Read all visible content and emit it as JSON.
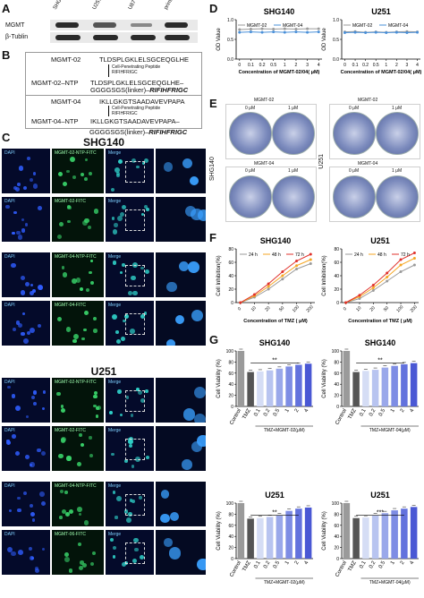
{
  "panels": {
    "a": "A",
    "b": "B",
    "c": "C",
    "d": "D",
    "e": "E",
    "f": "F",
    "g": "G"
  },
  "blot": {
    "lanes": [
      "SHG140",
      "U251",
      "U87",
      "primary"
    ],
    "rows": [
      "MGMT",
      "β-Tublin"
    ]
  },
  "panel_b": {
    "seq1_name": "MGMT-02",
    "seq1": "TLDSPLGKLELSGCEQGLHE",
    "seq1_ntp_name": "MGMT-02–NTP",
    "seq1_ntp": "TLDSPLGKLELSGCEQGLHE–",
    "arrow_label": "Cell-Penetrating Peptide",
    "arrow_seq": "RIFIHFRIGC",
    "linker": "GGGGSGS(linker)–",
    "cpp": "RIFIHFRIGC",
    "seq2_name": "MGMT-04",
    "seq2": "IKLLGKGTSAADAVEVPAPA",
    "seq2_ntp_name": "MGMT-04–NTP",
    "seq2_ntp": "IKLLGKGTSAADAVEVPAPA–"
  },
  "panel_c": {
    "shg_title": "SHG140",
    "u_title": "U251",
    "rows": [
      {
        "dapi": "DAPI",
        "fitc": "MGMT-02-NTP-FITC",
        "merge": "Merge"
      },
      {
        "dapi": "DAPI",
        "fitc": "MGMT-02-FITC",
        "merge": "Merge"
      },
      {
        "dapi": "DAPI",
        "fitc": "MGMT-04-NTP-FITC",
        "merge": "Merge"
      },
      {
        "dapi": "DAPI",
        "fitc": "MGMT-04-FITC",
        "merge": "Merge"
      },
      {
        "dapi": "DAPI",
        "fitc": "MGMT-02-NTP-FITC",
        "merge": "Merge"
      },
      {
        "dapi": "DAPI",
        "fitc": "MGMT-02-FITC",
        "merge": "Merge"
      },
      {
        "dapi": "DAPI",
        "fitc": "MGMT-04-NTP-FITC",
        "merge": "Merge"
      },
      {
        "dapi": "DAPI",
        "fitc": "MGMT-06-FITC",
        "merge": "Merge"
      }
    ],
    "scale": "50 μm"
  },
  "panel_e": {
    "left_side": "SHG140",
    "right_side": "U251",
    "top_group": "MGMT-02",
    "bottom_group": "MGMT-04",
    "doses": [
      "0 μM",
      "1 μM"
    ]
  },
  "chart_data": [
    {
      "id": "D-SHG140",
      "type": "line",
      "title": "SHG140",
      "xlabel": "Concentration of MGMT-02/04( μM)",
      "ylabel": "OD Value",
      "categories": [
        "0",
        "0.1",
        "0.2",
        "0.5",
        "1",
        "2",
        "3",
        "4"
      ],
      "ylim": [
        0,
        1.0
      ],
      "yticks": [
        "0.0",
        "0.5",
        "1.0"
      ],
      "series": [
        {
          "name": "MGMT-02",
          "color": "#9a9a9a",
          "values": [
            0.75,
            0.76,
            0.77,
            0.76,
            0.77,
            0.76,
            0.77,
            0.77
          ]
        },
        {
          "name": "MGMT-04",
          "color": "#4a90d9",
          "values": [
            0.68,
            0.69,
            0.68,
            0.69,
            0.68,
            0.69,
            0.68,
            0.69
          ]
        }
      ]
    },
    {
      "id": "D-U251",
      "type": "line",
      "title": "U251",
      "xlabel": "Concentration of MGMT-02/04( μM)",
      "ylabel": "OD Value",
      "categories": [
        "0",
        "0.1",
        "0.2",
        "0.5",
        "1",
        "2",
        "3",
        "4"
      ],
      "ylim": [
        0,
        1.0
      ],
      "yticks": [
        "0.0",
        "0.5",
        "1.0"
      ],
      "series": [
        {
          "name": "MGMT-02",
          "color": "#9a9a9a",
          "values": [
            0.69,
            0.7,
            0.68,
            0.69,
            0.68,
            0.69,
            0.7,
            0.69
          ]
        },
        {
          "name": "MGMT-04",
          "color": "#4a90d9",
          "values": [
            0.67,
            0.68,
            0.67,
            0.68,
            0.67,
            0.68,
            0.67,
            0.68
          ]
        }
      ]
    },
    {
      "id": "F-SHG140",
      "type": "line",
      "title": "SHG140",
      "xlabel": "Concentration of TMZ ( μM)",
      "ylabel": "Cell Inhibition(%)",
      "categories": [
        "0",
        "10",
        "20",
        "50",
        "100",
        "200"
      ],
      "ylim": [
        0,
        80
      ],
      "yticks": [
        "0",
        "20",
        "40",
        "60",
        "80"
      ],
      "series": [
        {
          "name": "24 h",
          "color": "#9a9a9a",
          "values": [
            0,
            8,
            20,
            35,
            50,
            58
          ]
        },
        {
          "name": "48 h",
          "color": "#f5a623",
          "values": [
            0,
            10,
            24,
            40,
            55,
            64
          ]
        },
        {
          "name": "72 h",
          "color": "#e0312b",
          "values": [
            0,
            12,
            28,
            46,
            62,
            72
          ]
        }
      ]
    },
    {
      "id": "F-U251",
      "type": "line",
      "title": "U251",
      "xlabel": "Concentration of TMZ ( μM)",
      "ylabel": "Cell Inhibition(%)",
      "categories": [
        "0",
        "10",
        "20",
        "50",
        "100",
        "200"
      ],
      "ylim": [
        0,
        80
      ],
      "yticks": [
        "0",
        "20",
        "40",
        "60",
        "80"
      ],
      "series": [
        {
          "name": "24 h",
          "color": "#9a9a9a",
          "values": [
            0,
            6,
            18,
            32,
            46,
            56
          ]
        },
        {
          "name": "48 h",
          "color": "#f5a623",
          "values": [
            0,
            9,
            22,
            38,
            56,
            66
          ]
        },
        {
          "name": "72 h",
          "color": "#e0312b",
          "values": [
            0,
            11,
            26,
            44,
            64,
            74
          ]
        }
      ]
    },
    {
      "id": "G-SHG140-02",
      "type": "bar",
      "title": "SHG140",
      "ylabel": "Cell Viability (%)",
      "xlabel": "TMZ+MGMT-02(μM)",
      "categories": [
        "Control",
        "TMZ",
        "0.1",
        "0.2",
        "0.5",
        "1",
        "2",
        "4"
      ],
      "values": [
        100,
        62,
        63,
        65,
        68,
        72,
        75,
        77
      ],
      "colors": [
        "#9a9a9a",
        "#555555",
        "#d5ddf5",
        "#b8c4f0",
        "#9aa8ea",
        "#7e8de4",
        "#6372dd",
        "#4a58d4"
      ],
      "ylim": [
        0,
        100
      ],
      "yticks": [
        "0",
        "20",
        "40",
        "60",
        "80",
        "100"
      ],
      "annotation": "**"
    },
    {
      "id": "G-SHG140-04",
      "type": "bar",
      "title": "SHG140",
      "ylabel": "Cell Viability (%)",
      "xlabel": "TMZ+MGMT-04(μM)",
      "categories": [
        "Control",
        "TMZ",
        "0.1",
        "0.2",
        "0.5",
        "1",
        "2",
        "4"
      ],
      "values": [
        100,
        62,
        64,
        66,
        70,
        73,
        76,
        78
      ],
      "colors": [
        "#9a9a9a",
        "#555555",
        "#d5ddf5",
        "#b8c4f0",
        "#9aa8ea",
        "#7e8de4",
        "#6372dd",
        "#4a58d4"
      ],
      "ylim": [
        0,
        100
      ],
      "yticks": [
        "0",
        "20",
        "40",
        "60",
        "80",
        "100"
      ],
      "annotation": "**"
    },
    {
      "id": "G-U251-02",
      "type": "bar",
      "title": "U251",
      "ylabel": "Cell Viability (%)",
      "xlabel": "TMZ+MGMT-02(μM)",
      "categories": [
        "Control",
        "TMZ",
        "0.1",
        "0.2",
        "0.5",
        "1",
        "2",
        "4"
      ],
      "values": [
        100,
        72,
        73,
        75,
        78,
        86,
        90,
        92
      ],
      "colors": [
        "#9a9a9a",
        "#555555",
        "#d5ddf5",
        "#b8c4f0",
        "#9aa8ea",
        "#7e8de4",
        "#6372dd",
        "#4a58d4"
      ],
      "ylim": [
        0,
        100
      ],
      "yticks": [
        "0",
        "20",
        "40",
        "60",
        "80",
        "100"
      ],
      "annotation": "**"
    },
    {
      "id": "G-U251-04",
      "type": "bar",
      "title": "U251",
      "ylabel": "Cell Viability (%)",
      "xlabel": "TMZ+MGMT-04(μM)",
      "categories": [
        "Control",
        "TMZ",
        "0.1",
        "0.2",
        "0.5",
        "1",
        "2",
        "4"
      ],
      "values": [
        100,
        73,
        74,
        78,
        82,
        87,
        90,
        93
      ],
      "colors": [
        "#9a9a9a",
        "#555555",
        "#d5ddf5",
        "#b8c4f0",
        "#9aa8ea",
        "#7e8de4",
        "#6372dd",
        "#4a58d4"
      ],
      "ylim": [
        0,
        100
      ],
      "yticks": [
        "0",
        "20",
        "40",
        "60",
        "80",
        "100"
      ],
      "annotation": "***"
    }
  ]
}
